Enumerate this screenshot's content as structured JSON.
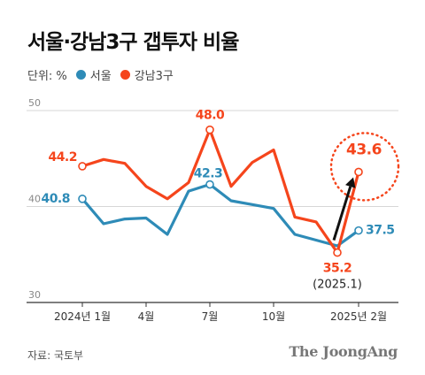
{
  "title": "서울·강남3구 갭투자 비율",
  "legend": {
    "unit": "단위: %",
    "seoul_label": "서울",
    "gangnam_label": "강남3구"
  },
  "source": "자료: 국토부",
  "brand": "The JoongAng",
  "colors": {
    "seoul": "#2e8bb7",
    "gangnam": "#f5451c",
    "annotation": "#111111"
  },
  "chart_data": {
    "type": "line",
    "x": [
      "2024-01",
      "2024-02",
      "2024-03",
      "2024-04",
      "2024-05",
      "2024-06",
      "2024-07",
      "2024-08",
      "2024-09",
      "2024-10",
      "2024-11",
      "2024-12",
      "2025-01",
      "2025-02"
    ],
    "xticks": [
      "2024년 1월",
      "4월",
      "7월",
      "10월",
      "2025년 2월"
    ],
    "xtick_positions": [
      "2024-01",
      "2024-04",
      "2024-07",
      "2024-10",
      "2025-02"
    ],
    "yticks": [
      "50",
      "40",
      "30"
    ],
    "ylim": [
      30,
      50
    ],
    "grid": true,
    "series": [
      {
        "name": "서울",
        "color": "#2e8bb7",
        "values": [
          40.8,
          38.2,
          38.7,
          38.8,
          37.1,
          41.6,
          42.3,
          40.6,
          40.2,
          39.8,
          37.1,
          36.5,
          35.9,
          37.5
        ]
      },
      {
        "name": "강남3구",
        "color": "#f5451c",
        "values": [
          44.2,
          44.9,
          44.5,
          42.1,
          40.8,
          42.5,
          48.0,
          42.1,
          44.6,
          45.9,
          38.9,
          38.4,
          35.2,
          43.6
        ]
      }
    ],
    "labels": {
      "seoul": [
        {
          "index": 0,
          "text": "40.8"
        },
        {
          "index": 6,
          "text": "42.3"
        },
        {
          "index": 13,
          "text": "37.5"
        }
      ],
      "gangnam": [
        {
          "index": 0,
          "text": "44.2"
        },
        {
          "index": 6,
          "text": "48.0"
        },
        {
          "index": 12,
          "text": "35.2"
        },
        {
          "index": 13,
          "text": "43.6"
        }
      ]
    },
    "annotation": {
      "note": "(2025.1)",
      "arrow": {
        "from_index": 12,
        "to_index": 13,
        "from_value": 35.2,
        "to_value": 43.6
      }
    }
  }
}
